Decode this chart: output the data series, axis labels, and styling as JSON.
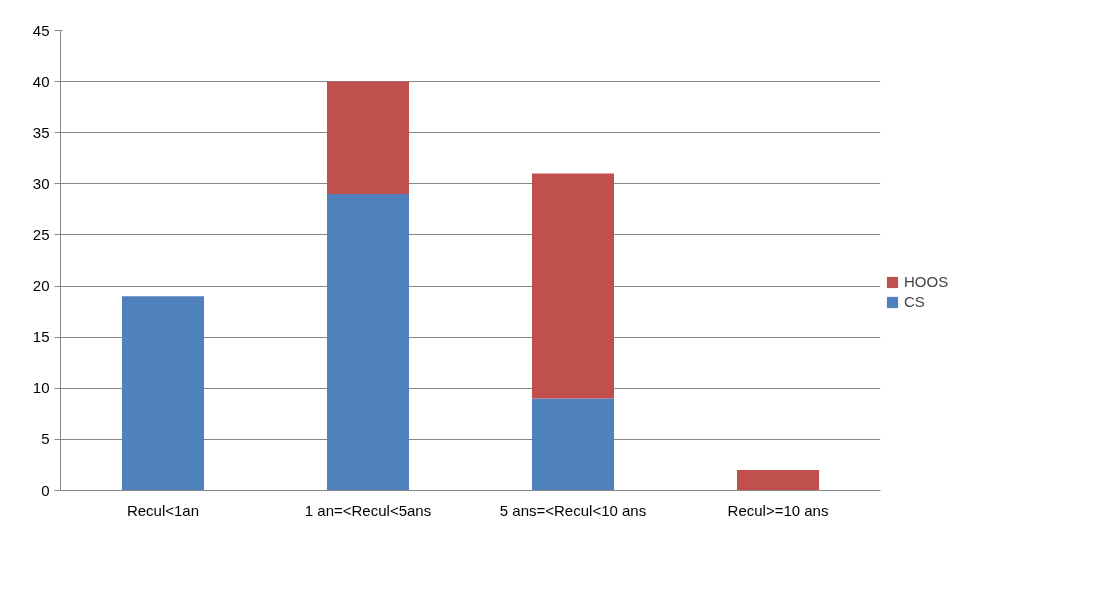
{
  "chart_data": {
    "type": "bar",
    "stacked": true,
    "categories": [
      "Recul<1an",
      "1 an=<Recul<5ans",
      "5 ans=<Recul<10 ans",
      "Recul>=10 ans"
    ],
    "series": [
      {
        "name": "CS",
        "color": "#4f81bd",
        "values": [
          19,
          29,
          9,
          0
        ]
      },
      {
        "name": "HOOS",
        "color": "#c0504d",
        "values": [
          0,
          11,
          22,
          2
        ]
      }
    ],
    "ylim": [
      0,
      45
    ],
    "yticks": [
      0,
      5,
      10,
      15,
      20,
      25,
      30,
      35,
      40,
      45
    ],
    "grid": "y",
    "legend": "right"
  }
}
